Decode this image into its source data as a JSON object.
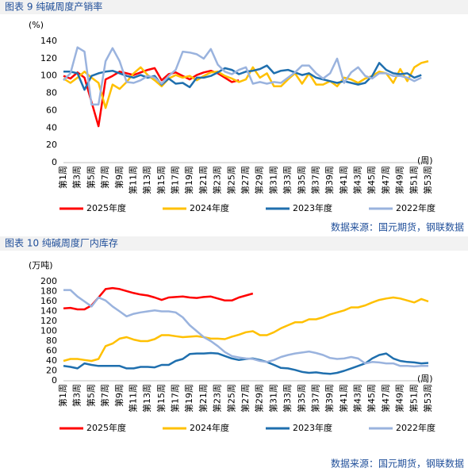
{
  "chart_data": [
    {
      "type": "line",
      "title": "图表 9 纯碱周度产销率",
      "y_unit": "(%)",
      "x_unit": "(周)",
      "source": "数据来源：国元期货，钢联数据",
      "categories": [
        "第1周",
        null,
        "第3周",
        null,
        "第5周",
        null,
        "第7周",
        null,
        "第9周",
        null,
        "第11周",
        null,
        "第13周",
        null,
        "第15周",
        null,
        "第17周",
        null,
        "第19周",
        null,
        "第21周",
        null,
        "第23周",
        null,
        "第25周",
        null,
        "第27周",
        null,
        "第29周",
        null,
        "第31周",
        null,
        "第33周",
        null,
        "第35周",
        null,
        "第37周",
        null,
        "第39周",
        null,
        "第41周",
        null,
        "第43周",
        null,
        "第45周",
        null,
        "第47周",
        null,
        "第49周",
        null,
        "第51周",
        null,
        "第53周"
      ],
      "ylim": [
        0,
        140
      ],
      "yticks": [
        0,
        20,
        40,
        60,
        80,
        100,
        120,
        140
      ],
      "series": [
        {
          "name": "2025年度",
          "color": "#ff0000",
          "values": [
            100,
            97,
            104,
            98,
            70,
            42,
            96,
            100,
            105,
            103,
            101,
            104,
            107,
            109,
            95,
            102,
            104,
            100,
            96,
            101,
            104,
            106,
            103,
            98,
            93,
            95,
            null,
            null,
            null,
            null,
            null,
            null,
            null,
            null,
            null,
            null,
            null,
            null,
            null,
            null,
            null,
            null,
            null,
            null,
            null,
            null,
            null,
            null,
            null,
            null,
            null,
            null,
            null
          ]
        },
        {
          "name": "2024年度",
          "color": "#ffc000",
          "values": [
            97,
            92,
            98,
            105,
            98,
            92,
            63,
            90,
            85,
            93,
            103,
            110,
            101,
            95,
            88,
            97,
            101,
            98,
            100,
            95,
            100,
            104,
            105,
            100,
            97,
            93,
            96,
            110,
            98,
            103,
            88,
            88,
            96,
            103,
            91,
            103,
            90,
            90,
            94,
            88,
            98,
            96,
            92,
            97,
            100,
            105,
            103,
            92,
            108,
            94,
            110,
            115,
            117
          ]
        },
        {
          "name": "2023年度",
          "color": "#1f6fae",
          "values": [
            105,
            105,
            103,
            84,
            100,
            103,
            105,
            106,
            103,
            100,
            98,
            101,
            98,
            100,
            90,
            97,
            91,
            92,
            87,
            98,
            98,
            100,
            104,
            109,
            107,
            102,
            105,
            106,
            108,
            112,
            103,
            106,
            107,
            104,
            101,
            103,
            98,
            96,
            94,
            92,
            94,
            92,
            90,
            92,
            100,
            115,
            107,
            103,
            102,
            103,
            98,
            101,
            null
          ]
        },
        {
          "name": "2022年度",
          "color": "#9ab3de",
          "values": [
            95,
            103,
            133,
            128,
            67,
            67,
            117,
            132,
            117,
            93,
            92,
            95,
            100,
            98,
            91,
            100,
            107,
            128,
            127,
            125,
            120,
            131,
            113,
            105,
            102,
            107,
            110,
            91,
            93,
            91,
            93,
            92,
            98,
            104,
            112,
            112,
            103,
            97,
            103,
            120,
            92,
            104,
            110,
            100,
            97,
            103,
            103,
            100,
            100,
            98,
            94,
            98,
            null
          ]
        }
      ]
    },
    {
      "type": "line",
      "title": "图表 10 纯碱周度厂内库存",
      "y_unit": "(万吨)",
      "x_unit": "(周)",
      "source": "数据来源：国元期货，钢联数据",
      "categories": [
        "第1周",
        null,
        "第3周",
        null,
        "第5周",
        null,
        "第7周",
        null,
        "第9周",
        null,
        "第11周",
        null,
        "第13周",
        null,
        "第15周",
        null,
        "第17周",
        null,
        "第19周",
        null,
        "第21周",
        null,
        "第23周",
        null,
        "第25周",
        null,
        "第27周",
        null,
        "第29周",
        null,
        "第31周",
        null,
        "第33周",
        null,
        "第35周",
        null,
        "第37周",
        null,
        "第39周",
        null,
        "第41周",
        null,
        "第43周",
        null,
        "第45周",
        null,
        "第47周",
        null,
        "第49周",
        null,
        "第51周",
        null,
        "第53周"
      ],
      "ylim": [
        0,
        200
      ],
      "yticks": [
        0,
        20,
        40,
        60,
        80,
        100,
        120,
        140,
        160,
        180,
        200
      ],
      "series": [
        {
          "name": "2025年度",
          "color": "#ff0000",
          "values": [
            146,
            147,
            144,
            144,
            152,
            168,
            185,
            187,
            185,
            181,
            177,
            174,
            172,
            168,
            163,
            168,
            169,
            170,
            168,
            167,
            169,
            170,
            166,
            162,
            162,
            168,
            172,
            176,
            null,
            null,
            null,
            null,
            null,
            null,
            null,
            null,
            null,
            null,
            null,
            null,
            null,
            null,
            null,
            null,
            null,
            null,
            null,
            null,
            null,
            null,
            null,
            null,
            null
          ]
        },
        {
          "name": "2024年度",
          "color": "#ffc000",
          "values": [
            40,
            44,
            44,
            42,
            40,
            44,
            70,
            75,
            85,
            88,
            83,
            80,
            80,
            84,
            92,
            92,
            90,
            88,
            89,
            90,
            88,
            85,
            85,
            84,
            89,
            93,
            98,
            100,
            92,
            92,
            98,
            106,
            112,
            118,
            118,
            124,
            124,
            128,
            134,
            138,
            142,
            148,
            148,
            152,
            158,
            163,
            166,
            168,
            166,
            162,
            158,
            165,
            160
          ]
        },
        {
          "name": "2023年度",
          "color": "#1f6fae",
          "values": [
            30,
            28,
            25,
            35,
            32,
            30,
            30,
            30,
            30,
            25,
            25,
            28,
            28,
            27,
            32,
            32,
            40,
            44,
            54,
            55,
            55,
            56,
            55,
            50,
            45,
            42,
            44,
            45,
            42,
            38,
            32,
            26,
            25,
            22,
            18,
            16,
            17,
            15,
            14,
            16,
            20,
            25,
            30,
            35,
            45,
            52,
            55,
            45,
            40,
            38,
            37,
            35,
            36
          ]
        },
        {
          "name": "2022年度",
          "color": "#9ab3de",
          "values": [
            183,
            183,
            170,
            160,
            150,
            168,
            162,
            150,
            140,
            130,
            135,
            138,
            140,
            142,
            140,
            140,
            138,
            128,
            112,
            100,
            88,
            80,
            70,
            58,
            50,
            47,
            45,
            44,
            40,
            38,
            42,
            48,
            52,
            55,
            57,
            59,
            56,
            52,
            46,
            44,
            45,
            48,
            45,
            35,
            38,
            37,
            35,
            35,
            30,
            30,
            29,
            30,
            30
          ]
        }
      ]
    }
  ]
}
